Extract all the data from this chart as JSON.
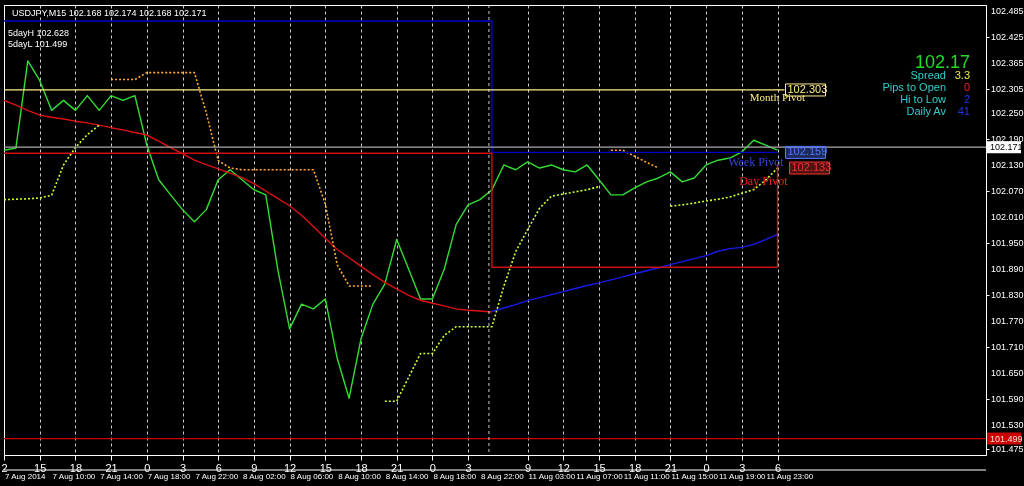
{
  "chart_data": {
    "type": "line",
    "title": "USDJPY,M15 102.168 102.174 102.168 102.171",
    "categories": [
      "2",
      null,
      null,
      "15",
      null,
      null,
      "18",
      null,
      null,
      "21",
      null,
      null,
      "0",
      null,
      null,
      "3",
      null,
      null,
      "6",
      null,
      null,
      "9",
      null,
      null,
      "12",
      null,
      null,
      "15",
      null,
      null,
      "18",
      null,
      null,
      "21",
      null,
      null,
      "0",
      null,
      null,
      "3",
      null,
      null,
      null,
      null,
      "9",
      null,
      null,
      "12",
      null,
      null,
      "15",
      null,
      null,
      "18",
      null,
      null,
      "21",
      null,
      null,
      "0",
      null,
      null,
      "3",
      null,
      null,
      "6"
    ],
    "ylim": [
      101.461,
      102.499
    ],
    "yticks": [
      102.485,
      102.425,
      102.365,
      102.305,
      {
        "value": 102.25,
        "label": "102.250"
      },
      {
        "value": 102.19,
        "label": "102.190"
      },
      {
        "value": 102.13,
        "label": "102.130"
      },
      {
        "value": 102.07,
        "label": "102.070"
      },
      {
        "value": 102.01,
        "label": "102.010"
      },
      {
        "value": 101.95,
        "label": "101.950"
      },
      {
        "value": 101.89,
        "label": "101.890"
      },
      {
        "value": 101.83,
        "label": "101.830"
      },
      {
        "value": 101.77,
        "label": "101.770"
      },
      {
        "value": 101.71,
        "label": "101.710"
      },
      {
        "value": 101.65,
        "label": "101.650"
      },
      {
        "value": 101.59,
        "label": "101.590"
      },
      {
        "value": 101.53,
        "label": "101.530"
      },
      101.475
    ],
    "grid": "x",
    "marker": "none",
    "series": [
      {
        "color": "#33dd33",
        "values": [
          102.164,
          102.169,
          102.37,
          102.325,
          102.256,
          102.279,
          102.256,
          102.29,
          102.256,
          102.29,
          102.279,
          102.29,
          102.176,
          102.096,
          102.061,
          102.027,
          101.999,
          102.027,
          102.096,
          102.119,
          102.096,
          102.073,
          102.061,
          101.89,
          101.752,
          101.809,
          101.798,
          101.821,
          101.684,
          101.592,
          101.729,
          101.809,
          101.855,
          101.958,
          101.89,
          101.821,
          101.821,
          101.89,
          101.993,
          102.038,
          102.05,
          102.073,
          102.13,
          102.119,
          102.137,
          102.123,
          102.13,
          102.119,
          102.114,
          102.13,
          102.096,
          102.061,
          102.061,
          102.077,
          102.091,
          102.1,
          102.114,
          102.091,
          102.1,
          102.13,
          102.141,
          102.146,
          102.16,
          102.187,
          102.176,
          102.164
        ]
      },
      {
        "color": "#dd1111",
        "values": [
          102.279,
          102.268,
          102.256,
          102.245,
          102.24,
          102.236,
          102.231,
          102.227,
          102.222,
          102.216,
          102.211,
          102.205,
          102.199,
          102.185,
          102.17,
          102.156,
          102.141,
          102.131,
          102.121,
          102.111,
          102.101,
          102.087,
          102.07,
          102.053,
          102.036,
          102.014,
          101.988,
          101.961,
          101.935,
          101.916,
          101.896,
          101.877,
          101.859,
          101.844,
          101.829,
          101.818,
          101.811,
          101.805,
          101.798,
          101.795,
          101.793,
          101.791,
          null,
          null,
          null,
          null,
          null,
          null,
          null,
          null,
          null,
          null,
          null,
          null,
          null,
          null,
          null,
          null,
          null,
          null,
          null,
          null,
          null,
          null,
          null,
          null
        ]
      },
      {
        "color": "#1a1aee",
        "values": [
          null,
          null,
          null,
          null,
          null,
          null,
          null,
          null,
          null,
          null,
          null,
          null,
          null,
          null,
          null,
          null,
          null,
          null,
          null,
          null,
          null,
          null,
          null,
          null,
          null,
          null,
          null,
          null,
          null,
          null,
          null,
          null,
          null,
          null,
          null,
          null,
          null,
          null,
          null,
          null,
          null,
          101.792,
          101.8,
          101.808,
          101.817,
          101.824,
          101.831,
          101.838,
          101.845,
          101.852,
          101.858,
          101.865,
          101.872,
          101.879,
          101.886,
          101.893,
          101.9,
          101.907,
          101.914,
          101.921,
          101.931,
          101.937,
          101.94,
          101.947,
          101.958,
          101.97
        ]
      },
      {
        "color": "#ccff33",
        "line_style": "dotted",
        "values": [
          102.05,
          102.051,
          102.052,
          102.054,
          102.06,
          102.13,
          102.17,
          102.2,
          102.222,
          null,
          null,
          null,
          null,
          null,
          null,
          null,
          null,
          null,
          null,
          null,
          null,
          null,
          null,
          null,
          null,
          null,
          null,
          null,
          null,
          null,
          null,
          null,
          101.585,
          101.585,
          101.64,
          101.695,
          101.695,
          101.737,
          101.757,
          101.757,
          101.757,
          101.757,
          101.85,
          101.93,
          101.981,
          102.03,
          102.058,
          102.063,
          102.068,
          102.073,
          102.08,
          null,
          null,
          null,
          null,
          null,
          102.035,
          102.038,
          102.042,
          102.047,
          102.051,
          102.056,
          102.065,
          102.073,
          102.095,
          102.123
        ]
      },
      {
        "color": "#ffaa33",
        "line_style": "dotted",
        "values": [
          null,
          null,
          null,
          null,
          null,
          null,
          null,
          null,
          null,
          102.327,
          102.327,
          102.327,
          102.343,
          102.343,
          102.343,
          102.343,
          102.343,
          102.25,
          102.14,
          102.123,
          102.119,
          102.119,
          102.119,
          102.119,
          102.119,
          102.119,
          102.119,
          102.04,
          101.9,
          101.851,
          101.851,
          101.851,
          null,
          null,
          null,
          null,
          null,
          null,
          null,
          null,
          null,
          null,
          null,
          null,
          null,
          null,
          null,
          null,
          null,
          null,
          null,
          102.164,
          102.164,
          102.15,
          102.136,
          102.123,
          null,
          null,
          null,
          null,
          null,
          null,
          null,
          null,
          null,
          null
        ]
      },
      {
        "type": "step",
        "color": "#0000cc",
        "values": [
          102.462,
          102.462,
          102.462,
          102.462,
          102.462,
          102.462,
          102.462,
          102.462,
          102.462,
          102.462,
          102.462,
          102.462,
          102.462,
          102.462,
          102.462,
          102.462,
          102.462,
          102.462,
          102.462,
          102.462,
          102.462,
          102.462,
          102.462,
          102.462,
          102.462,
          102.462,
          102.462,
          102.462,
          102.462,
          102.462,
          102.462,
          102.462,
          102.462,
          102.462,
          102.462,
          102.462,
          102.462,
          102.462,
          102.462,
          102.462,
          102.462,
          102.159,
          102.159,
          102.159,
          102.159,
          102.159,
          102.159,
          102.159,
          102.159,
          102.159,
          102.159,
          102.159,
          102.159,
          102.159,
          102.159,
          102.159,
          102.159,
          102.159,
          102.159,
          102.159,
          102.159,
          102.159,
          102.159,
          102.159,
          102.159,
          102.159
        ]
      },
      {
        "type": "step",
        "color": "#cc1111",
        "values": [
          102.157,
          102.157,
          102.157,
          102.157,
          102.157,
          102.157,
          102.157,
          102.157,
          102.157,
          102.157,
          102.157,
          102.157,
          102.157,
          102.157,
          102.157,
          102.157,
          102.157,
          102.157,
          102.157,
          102.157,
          102.157,
          102.157,
          102.157,
          102.157,
          102.157,
          102.157,
          102.157,
          102.157,
          102.157,
          102.157,
          102.157,
          102.157,
          102.157,
          102.157,
          102.157,
          102.157,
          102.157,
          102.157,
          102.157,
          102.157,
          102.157,
          101.894,
          101.894,
          101.894,
          101.894,
          101.894,
          101.894,
          101.894,
          101.894,
          101.894,
          101.894,
          101.894,
          101.894,
          101.894,
          101.894,
          101.894,
          101.894,
          101.894,
          101.894,
          101.894,
          101.894,
          101.894,
          101.894,
          101.894,
          101.894,
          102.133
        ]
      }
    ],
    "ref_lines": [
      {
        "axis": "y",
        "value": 102.303,
        "label": "Month Pivot",
        "color": "#ffee88"
      },
      {
        "axis": "y",
        "value": 102.171,
        "label": "102.171",
        "color": "#aaaaaa"
      },
      {
        "axis": "y",
        "value": 101.499,
        "label": "101.499",
        "color": "#cc0000"
      }
    ],
    "annotations": [
      {
        "text": "102.303",
        "y": 102.303
      },
      {
        "text": "102.159",
        "y": 102.159
      },
      {
        "text": "Week Pivot",
        "y": 102.159
      },
      "102.133",
      "Day Pivot",
      "5dayH 102.628",
      "5dayL 101.499",
      "102.17",
      "Spread",
      "3.3",
      "Pips to Open",
      "0",
      "Hi to Low",
      "2",
      "Daily Av",
      "41",
      "7 Aug 2014",
      "7 Aug 10:00",
      "7 Aug 14:00",
      "7 Aug 18:00",
      "7 Aug 22:00",
      "8 Aug 02:00",
      "8 Aug 06:00",
      "8 Aug 10:00",
      "8 Aug 14:00",
      "8 Aug 18:00",
      "8 Aug 22:00",
      "11 Aug 03:00",
      "11 Aug 07:00",
      "11 Aug 11:00",
      "11 Aug 15:00",
      "11 Aug 19:00",
      "11 Aug 23:00"
    ]
  }
}
